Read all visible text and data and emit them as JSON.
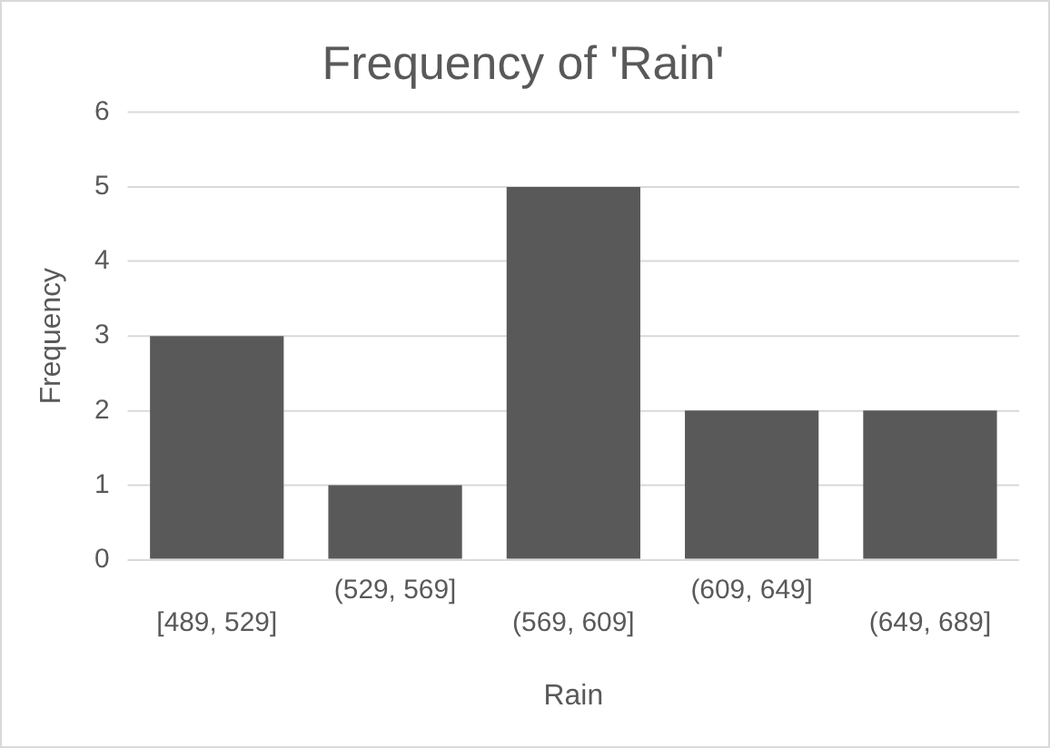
{
  "chart_data": {
    "type": "bar",
    "title": "Frequency of 'Rain'",
    "xlabel": "Rain",
    "ylabel": "Frequency",
    "categories": [
      "[489, 529]",
      "(529, 569]",
      "(569, 609]",
      "(609, 649]",
      "(649, 689]"
    ],
    "values": [
      3,
      1,
      5,
      2,
      2
    ],
    "color": "#595959",
    "ylim": [
      0,
      6
    ],
    "yticks": [
      0,
      1,
      2,
      3,
      4,
      5,
      6
    ],
    "grid": "y",
    "legend": false
  }
}
